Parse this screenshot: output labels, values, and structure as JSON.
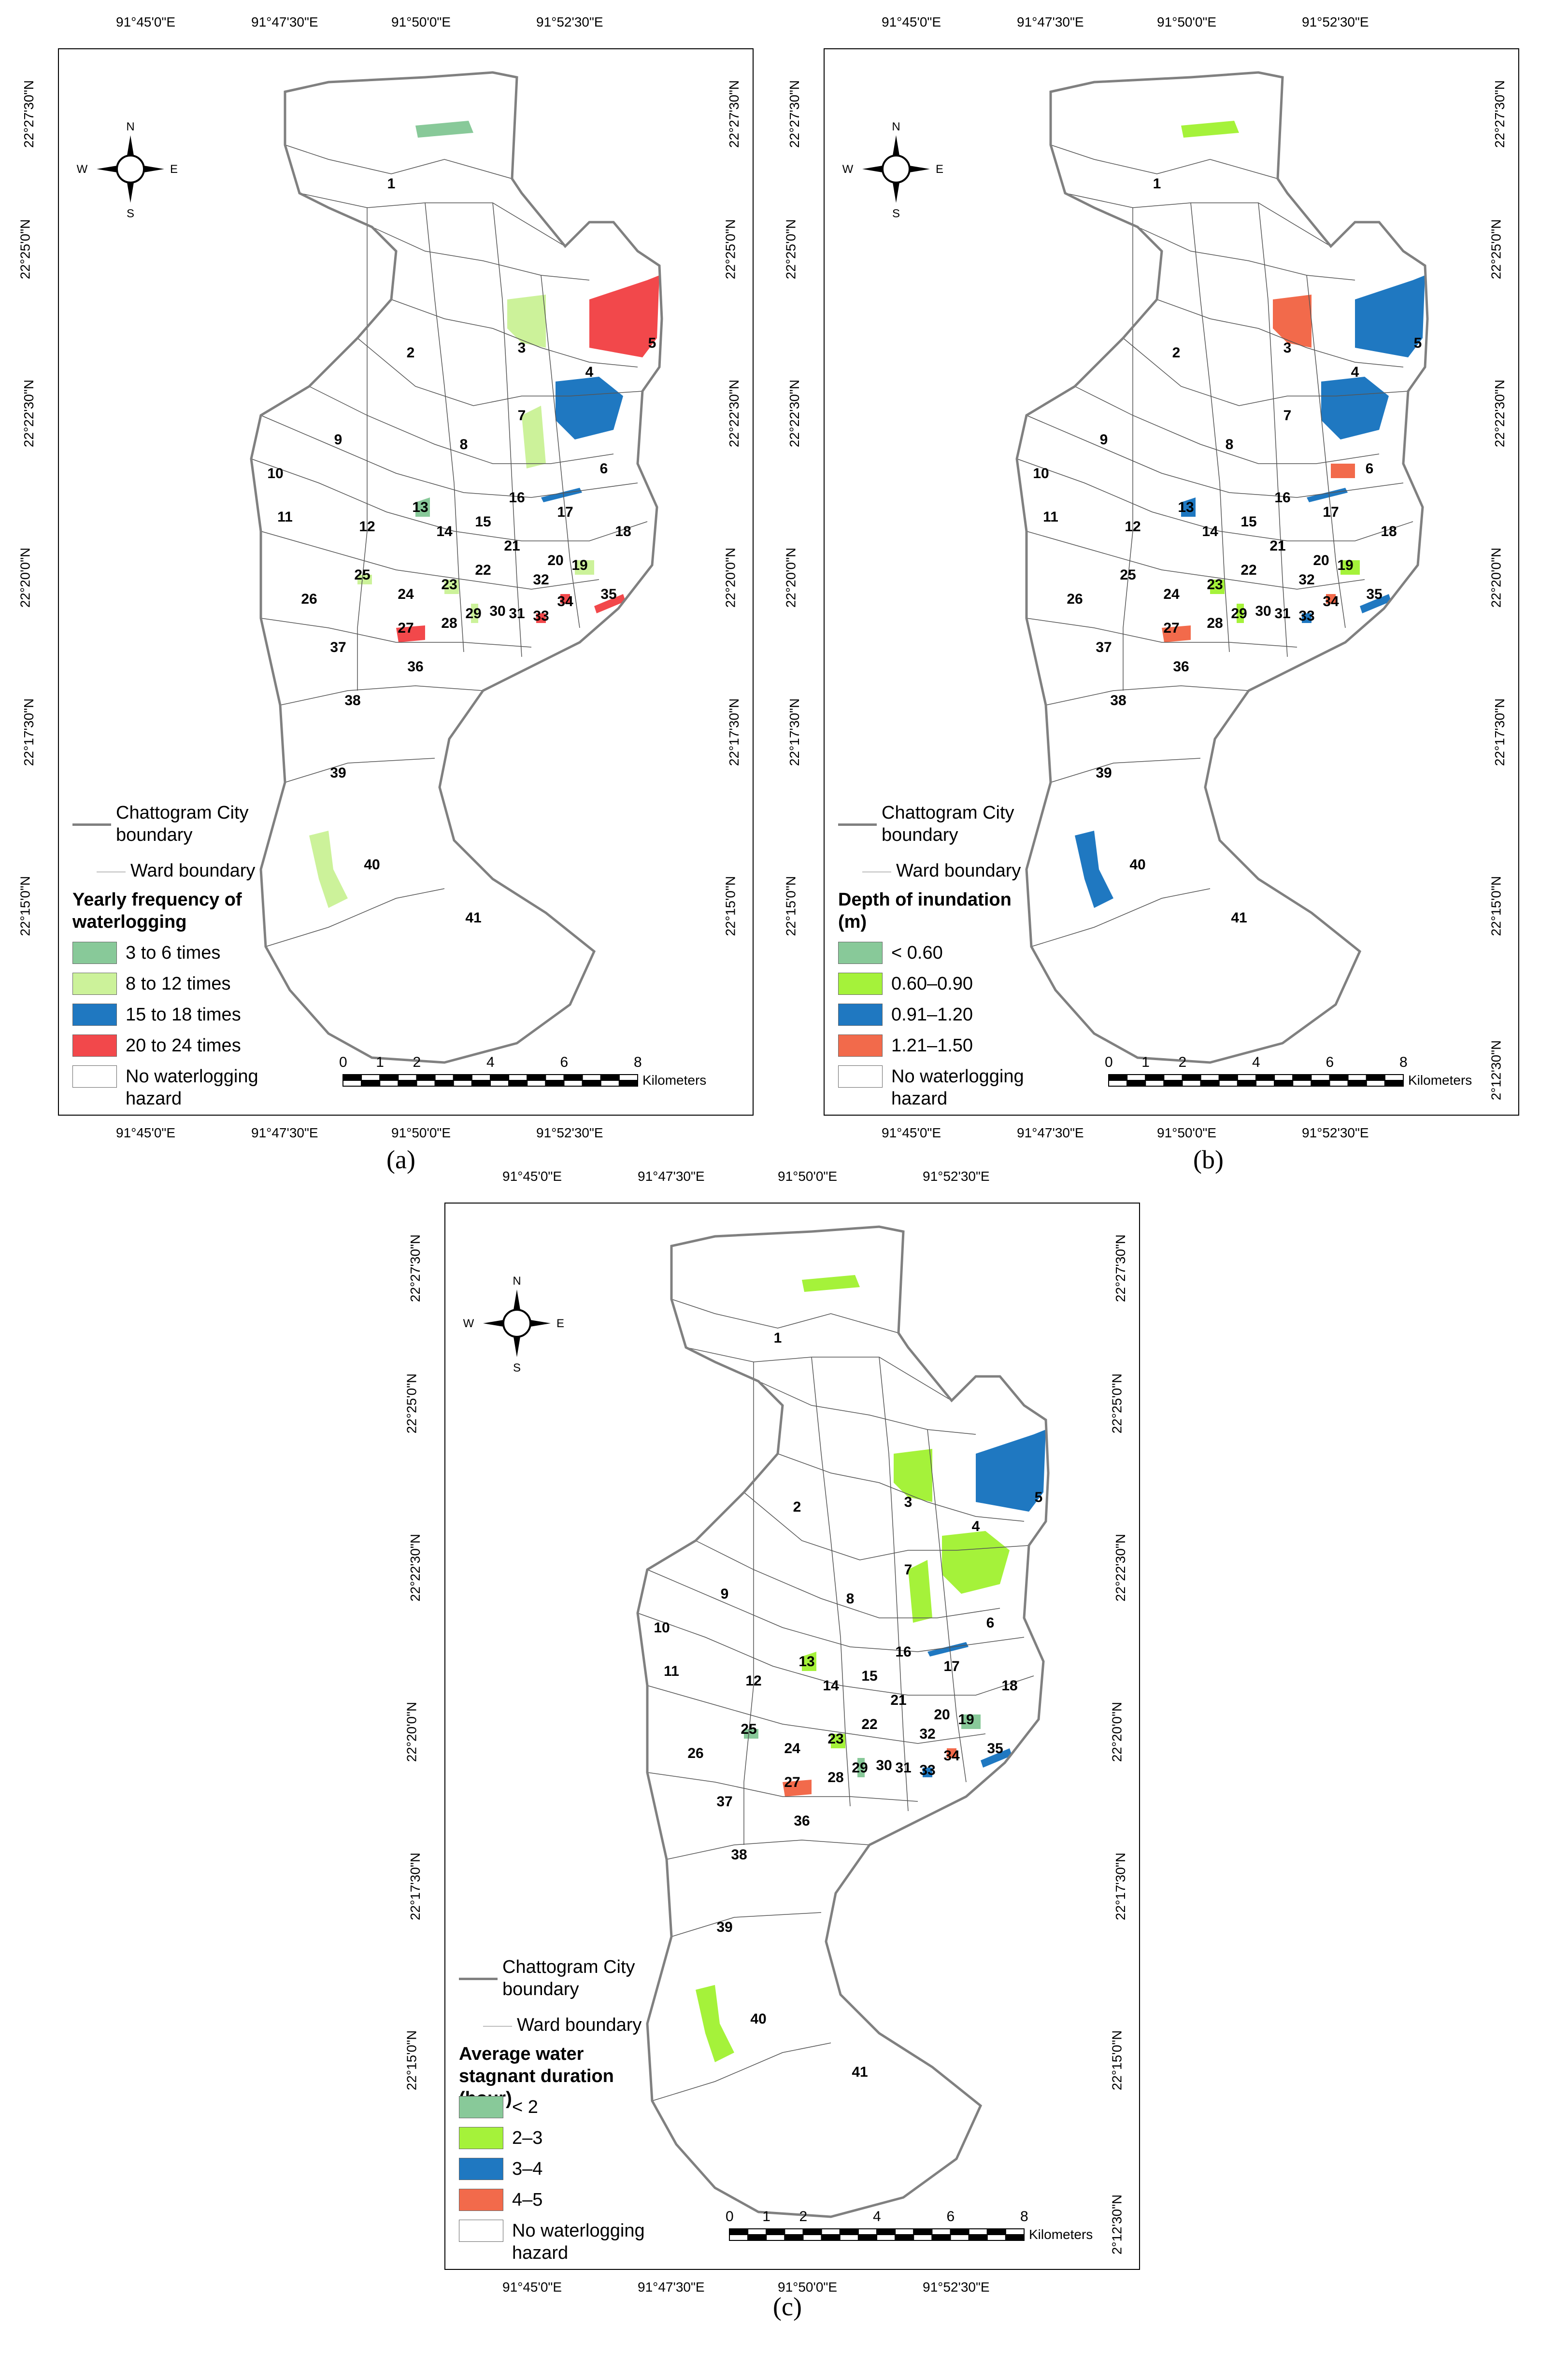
{
  "panels": [
    {
      "id": "a",
      "caption": "(a)",
      "top_coords": [
        "91°45'0\"E",
        "91°47'30\"E",
        "91°50'0\"E",
        "91°52'30\"E"
      ],
      "bottom_coords": [
        "91°45'0\"E",
        "91°47'30\"E",
        "91°50'0\"E",
        "91°52'30\"E"
      ],
      "left_coords": [
        "22°27'30\"N",
        "22°25'0\"N",
        "22°22'30\"N",
        "22°20'0\"N",
        "22°17'30\"N",
        "22°15'0\"N"
      ],
      "right_coords": [
        "22°27'30\"N",
        "22°25'0\"N",
        "22°22'30\"N",
        "22°20'0\"N",
        "22°17'30\"N",
        "22°15'0\"N"
      ],
      "legend": {
        "city_boundary": "Chattogram City boundary",
        "ward_boundary": "Ward boundary",
        "title": "Yearly frequency of waterlogging",
        "classes": [
          {
            "label": "3 to 6 times",
            "color": "#88c999"
          },
          {
            "label": "8 to 12 times",
            "color": "#ccf29a"
          },
          {
            "label": "15 to 18 times",
            "color": "#1f78c1"
          },
          {
            "label": "20 to 24 times",
            "color": "#f2484b"
          }
        ],
        "none": "No waterlogging hazard"
      },
      "scale": {
        "ticks": [
          "0",
          "1",
          "2",
          "4",
          "6",
          "8"
        ],
        "unit": "Kilometers"
      },
      "compass": {
        "n": "N",
        "s": "S",
        "e": "E",
        "w": "W"
      }
    },
    {
      "id": "b",
      "caption": "(b)",
      "top_coords": [
        "91°45'0\"E",
        "91°47'30\"E",
        "91°50'0\"E",
        "91°52'30\"E"
      ],
      "bottom_coords": [
        "91°45'0\"E",
        "91°47'30\"E",
        "91°50'0\"E",
        "91°52'30\"E"
      ],
      "left_coords": [
        "22°27'30\"N",
        "22°25'0\"N",
        "22°22'30\"N",
        "22°20'0\"N",
        "22°17'30\"N",
        "22°15'0\"N"
      ],
      "right_coords": [
        "22°27'30\"N",
        "22°25'0\"N",
        "22°22'30\"N",
        "22°20'0\"N",
        "22°17'30\"N",
        "22°15'0\"N",
        "2°12'30\"N"
      ],
      "legend": {
        "city_boundary": "Chattogram City boundary",
        "ward_boundary": "Ward boundary",
        "title": "Depth of inundation (m)",
        "classes": [
          {
            "label": "< 0.60",
            "color": "#88c999"
          },
          {
            "label": "0.60–0.90",
            "color": "#a5f23a"
          },
          {
            "label": "0.91–1.20",
            "color": "#1f78c1"
          },
          {
            "label": "1.21–1.50",
            "color": "#f26a4b"
          }
        ],
        "none": "No waterlogging hazard"
      },
      "scale": {
        "ticks": [
          "0",
          "1",
          "2",
          "4",
          "6",
          "8"
        ],
        "unit": "Kilometers"
      },
      "compass": {
        "n": "N",
        "s": "S",
        "e": "E",
        "w": "W"
      }
    },
    {
      "id": "c",
      "caption": "(c)",
      "top_coords": [
        "91°45'0\"E",
        "91°47'30\"E",
        "91°50'0\"E",
        "91°52'30\"E"
      ],
      "bottom_coords": [
        "91°45'0\"E",
        "91°47'30\"E",
        "91°50'0\"E",
        "91°52'30\"E"
      ],
      "left_coords": [
        "22°27'30\"N",
        "22°25'0\"N",
        "22°22'30\"N",
        "22°20'0\"N",
        "22°17'30\"N",
        "22°15'0\"N"
      ],
      "right_coords": [
        "22°27'30\"N",
        "22°25'0\"N",
        "22°22'30\"N",
        "22°20'0\"N",
        "22°17'30\"N",
        "22°15'0\"N",
        "2°12'30\"N"
      ],
      "legend": {
        "city_boundary": "Chattogram City boundary",
        "ward_boundary": "Ward boundary",
        "title": "Average water stagnant duration (hour)",
        "classes": [
          {
            "label": "< 2",
            "color": "#88c999"
          },
          {
            "label": "2–3",
            "color": "#a5f23a"
          },
          {
            "label": "3–4",
            "color": "#1f78c1"
          },
          {
            "label": "4–5",
            "color": "#f26a4b"
          }
        ],
        "none": "No waterlogging hazard"
      },
      "scale": {
        "ticks": [
          "0",
          "1",
          "2",
          "4",
          "6",
          "8"
        ],
        "unit": "Kilometers"
      },
      "compass": {
        "n": "N",
        "s": "S",
        "e": "E",
        "w": "W"
      }
    }
  ],
  "wards": [
    "1",
    "2",
    "3",
    "4",
    "5",
    "6",
    "7",
    "8",
    "9",
    "10",
    "11",
    "12",
    "13",
    "14",
    "15",
    "16",
    "17",
    "18",
    "19",
    "20",
    "21",
    "22",
    "23",
    "24",
    "25",
    "26",
    "27",
    "28",
    "29",
    "30",
    "31",
    "32",
    "33",
    "34",
    "35",
    "36",
    "37",
    "38",
    "39",
    "40",
    "41"
  ],
  "hazard_areas": {
    "a": [
      {
        "ward": "1",
        "cls": 0
      },
      {
        "ward": "3",
        "cls": 1
      },
      {
        "ward": "4",
        "cls": 2
      },
      {
        "ward": "5",
        "cls": 3
      },
      {
        "ward": "7",
        "cls": 1
      },
      {
        "ward": "13",
        "cls": 0
      },
      {
        "ward": "17",
        "cls": 2
      },
      {
        "ward": "19",
        "cls": 1
      },
      {
        "ward": "23",
        "cls": 1
      },
      {
        "ward": "25",
        "cls": 1
      },
      {
        "ward": "27",
        "cls": 3
      },
      {
        "ward": "29",
        "cls": 1
      },
      {
        "ward": "33",
        "cls": 3
      },
      {
        "ward": "34",
        "cls": 3
      },
      {
        "ward": "35",
        "cls": 3
      },
      {
        "ward": "40",
        "cls": 1
      }
    ],
    "b": [
      {
        "ward": "1",
        "cls": 1
      },
      {
        "ward": "3",
        "cls": 3
      },
      {
        "ward": "4",
        "cls": 2
      },
      {
        "ward": "5",
        "cls": 2
      },
      {
        "ward": "6",
        "cls": 3
      },
      {
        "ward": "13",
        "cls": 2
      },
      {
        "ward": "17",
        "cls": 2
      },
      {
        "ward": "19",
        "cls": 1
      },
      {
        "ward": "23",
        "cls": 1
      },
      {
        "ward": "27",
        "cls": 3
      },
      {
        "ward": "29",
        "cls": 1
      },
      {
        "ward": "33",
        "cls": 2
      },
      {
        "ward": "34",
        "cls": 3
      },
      {
        "ward": "35",
        "cls": 2
      },
      {
        "ward": "40",
        "cls": 2
      }
    ],
    "c": [
      {
        "ward": "1",
        "cls": 1
      },
      {
        "ward": "3",
        "cls": 1
      },
      {
        "ward": "4",
        "cls": 1
      },
      {
        "ward": "5",
        "cls": 2
      },
      {
        "ward": "7",
        "cls": 1
      },
      {
        "ward": "13",
        "cls": 1
      },
      {
        "ward": "17",
        "cls": 2
      },
      {
        "ward": "19",
        "cls": 0
      },
      {
        "ward": "23",
        "cls": 1
      },
      {
        "ward": "25",
        "cls": 0
      },
      {
        "ward": "27",
        "cls": 3
      },
      {
        "ward": "29",
        "cls": 0
      },
      {
        "ward": "33",
        "cls": 2
      },
      {
        "ward": "34",
        "cls": 3
      },
      {
        "ward": "35",
        "cls": 2
      },
      {
        "ward": "40",
        "cls": 1
      }
    ]
  }
}
